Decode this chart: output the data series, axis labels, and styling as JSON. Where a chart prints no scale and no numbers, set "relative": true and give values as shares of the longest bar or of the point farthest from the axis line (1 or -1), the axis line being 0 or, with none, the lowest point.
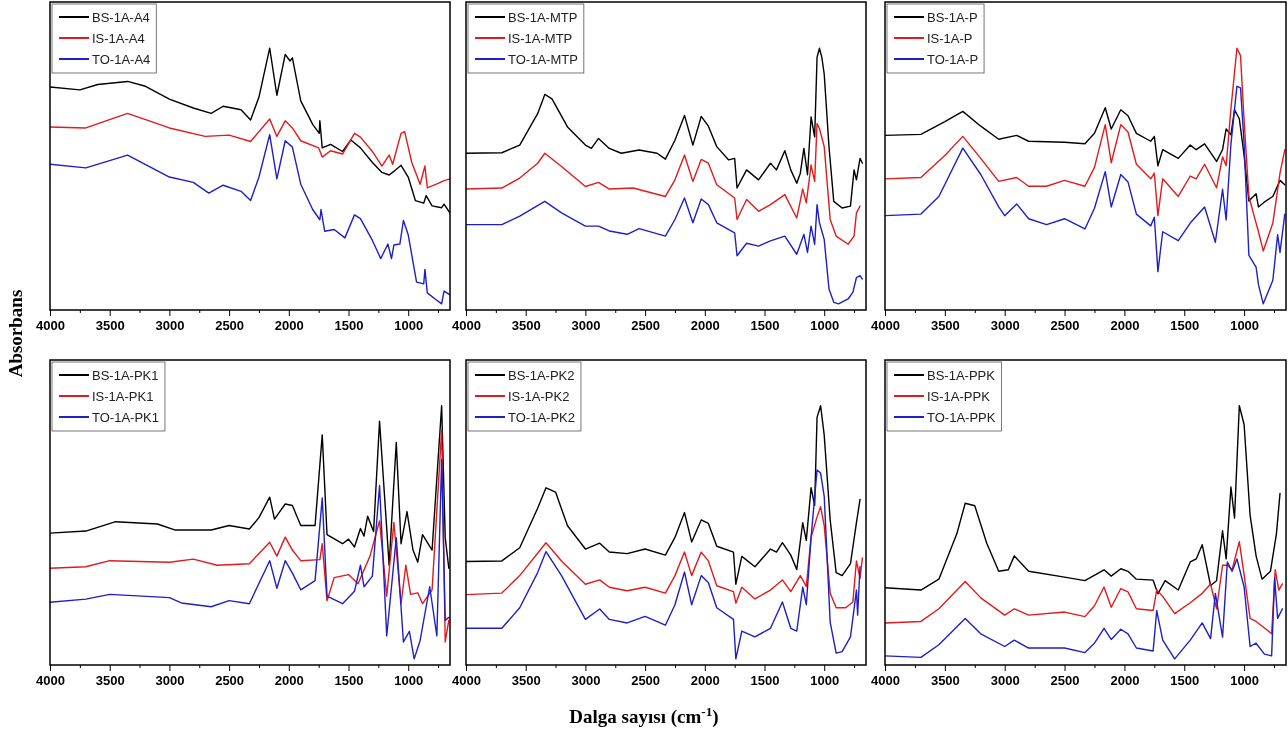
{
  "chart_data": [
    {
      "type": "line",
      "relative": true,
      "ylabel": "Absorbans",
      "xlim": [
        4000,
        650
      ],
      "xticks": [
        4000,
        {
          "value": 3750,
          "label": null
        },
        3500,
        {
          "value": 3250,
          "label": null
        },
        3000,
        {
          "value": 2750,
          "label": null
        },
        2500,
        {
          "value": 2250,
          "label": null
        },
        2000,
        {
          "value": 1750,
          "label": null
        },
        1500,
        {
          "value": 1250,
          "label": null
        },
        1000,
        {
          "value": 750,
          "label": null
        }
      ],
      "legend": "top left",
      "series": [
        {
          "name": "BS-1A-A4",
          "color": "#000000",
          "x": [
            4000,
            3750,
            3600,
            3350,
            3200,
            3000,
            2800,
            2650,
            2550,
            2400,
            2320,
            2250,
            2160,
            2100,
            2030,
            1990,
            1970,
            1900,
            1800,
            1745,
            1740,
            1720,
            1650,
            1550,
            1480,
            1400,
            1300,
            1220,
            1160,
            1120,
            1060,
            1000,
            940,
            870,
            850,
            800,
            720,
            700,
            650
          ],
          "values": [
            0.848,
            0.837,
            0.858,
            0.87,
            0.851,
            0.801,
            0.766,
            0.745,
            0.773,
            0.759,
            0.719,
            0.809,
            1.0,
            0.816,
            0.976,
            0.95,
            0.962,
            0.794,
            0.702,
            0.667,
            0.716,
            0.61,
            0.624,
            0.596,
            0.641,
            0.61,
            0.553,
            0.514,
            0.504,
            0.518,
            0.542,
            0.496,
            0.404,
            0.394,
            0.423,
            0.383,
            0.376,
            0.39,
            0.355
          ]
        },
        {
          "name": "IS-1A-A4",
          "color": "#e31a1c",
          "x": [
            4000,
            3700,
            3350,
            3000,
            2700,
            2500,
            2320,
            2160,
            2100,
            2030,
            1970,
            1900,
            1750,
            1720,
            1650,
            1550,
            1450,
            1400,
            1300,
            1220,
            1160,
            1130,
            1060,
            1030,
            970,
            900,
            860,
            840,
            750,
            700,
            650
          ],
          "values": [
            0.692,
            0.688,
            0.745,
            0.688,
            0.655,
            0.66,
            0.635,
            0.723,
            0.655,
            0.716,
            0.688,
            0.638,
            0.61,
            0.574,
            0.599,
            0.586,
            0.667,
            0.652,
            0.596,
            0.539,
            0.582,
            0.546,
            0.667,
            0.674,
            0.553,
            0.468,
            0.539,
            0.454,
            0.471,
            0.482,
            0.489
          ]
        },
        {
          "name": "TO-1A-A4",
          "color": "#1f1fc8",
          "x": [
            4000,
            3700,
            3350,
            3000,
            2800,
            2670,
            2550,
            2400,
            2320,
            2250,
            2160,
            2100,
            2030,
            1970,
            1900,
            1800,
            1740,
            1730,
            1700,
            1620,
            1530,
            1450,
            1400,
            1300,
            1230,
            1170,
            1140,
            1120,
            1070,
            1040,
            1000,
            930,
            870,
            860,
            840,
            780,
            720,
            700,
            650
          ],
          "values": [
            0.546,
            0.532,
            0.582,
            0.496,
            0.475,
            0.433,
            0.464,
            0.44,
            0.404,
            0.496,
            0.662,
            0.489,
            0.638,
            0.613,
            0.468,
            0.369,
            0.329,
            0.369,
            0.284,
            0.291,
            0.258,
            0.348,
            0.333,
            0.248,
            0.177,
            0.234,
            0.177,
            0.23,
            0.234,
            0.326,
            0.27,
            0.085,
            0.078,
            0.135,
            0.043,
            0.021,
            0,
            0.05,
            0.035
          ]
        }
      ]
    },
    {
      "type": "line",
      "relative": true,
      "xlim": [
        4000,
        650
      ],
      "xticks": [
        4000,
        {
          "value": 3750,
          "label": null
        },
        3500,
        {
          "value": 3250,
          "label": null
        },
        3000,
        {
          "value": 2750,
          "label": null
        },
        2500,
        {
          "value": 2250,
          "label": null
        },
        2000,
        {
          "value": 1750,
          "label": null
        },
        1500,
        {
          "value": 1250,
          "label": null
        },
        1000,
        {
          "value": 750,
          "label": null
        }
      ],
      "legend": "top left",
      "series": [
        {
          "name": "BS-1A-MTP",
          "color": "#000000",
          "x": [
            4000,
            3700,
            3550,
            3400,
            3340,
            3280,
            3150,
            3000,
            2950,
            2890,
            2800,
            2700,
            2550,
            2400,
            2330,
            2250,
            2170,
            2100,
            2030,
            1970,
            1900,
            1800,
            1750,
            1730,
            1650,
            1550,
            1450,
            1400,
            1330,
            1280,
            1230,
            1200,
            1170,
            1140,
            1110,
            1080,
            1060,
            1040,
            1020,
            1000,
            960,
            920,
            850,
            780,
            750,
            730,
            700,
            680
          ],
          "values": [
            0.589,
            0.591,
            0.621,
            0.744,
            0.819,
            0.802,
            0.692,
            0.621,
            0.608,
            0.647,
            0.608,
            0.589,
            0.602,
            0.589,
            0.566,
            0.64,
            0.737,
            0.621,
            0.733,
            0.695,
            0.615,
            0.563,
            0.569,
            0.453,
            0.524,
            0.485,
            0.55,
            0.524,
            0.599,
            0.524,
            0.472,
            0.511,
            0.608,
            0.505,
            0.731,
            0.653,
            0.964,
            1.0,
            0.964,
            0.899,
            0.615,
            0.401,
            0.375,
            0.382,
            0.524,
            0.485,
            0.569,
            0.55
          ]
        },
        {
          "name": "IS-1A-MTP",
          "color": "#e31a1c",
          "x": [
            4000,
            3700,
            3550,
            3400,
            3340,
            3200,
            3000,
            2890,
            2800,
            2600,
            2330,
            2250,
            2170,
            2100,
            2030,
            1970,
            1900,
            1750,
            1730,
            1650,
            1550,
            1450,
            1330,
            1230,
            1180,
            1150,
            1110,
            1080,
            1060,
            1040,
            1000,
            950,
            900,
            800,
            750,
            730,
            700
          ],
          "values": [
            0.449,
            0.453,
            0.492,
            0.55,
            0.589,
            0.537,
            0.459,
            0.475,
            0.449,
            0.453,
            0.42,
            0.485,
            0.582,
            0.479,
            0.565,
            0.55,
            0.466,
            0.414,
            0.33,
            0.408,
            0.362,
            0.388,
            0.427,
            0.336,
            0.449,
            0.395,
            0.543,
            0.479,
            0.705,
            0.686,
            0.615,
            0.33,
            0.265,
            0.233,
            0.265,
            0.356,
            0.382
          ]
        },
        {
          "name": "TO-1A-MTP",
          "color": "#1f1fc8",
          "x": [
            4000,
            3700,
            3550,
            3340,
            3200,
            3000,
            2890,
            2800,
            2650,
            2550,
            2330,
            2250,
            2170,
            2100,
            2030,
            1970,
            1900,
            1750,
            1730,
            1650,
            1550,
            1450,
            1330,
            1230,
            1170,
            1140,
            1110,
            1080,
            1060,
            1040,
            1000,
            960,
            920,
            880,
            800,
            760,
            730,
            700,
            680
          ],
          "values": [
            0.31,
            0.31,
            0.343,
            0.401,
            0.356,
            0.304,
            0.304,
            0.285,
            0.272,
            0.294,
            0.265,
            0.33,
            0.414,
            0.317,
            0.41,
            0.388,
            0.317,
            0.278,
            0.188,
            0.237,
            0.226,
            0.246,
            0.265,
            0.194,
            0.272,
            0.201,
            0.304,
            0.233,
            0.388,
            0.317,
            0.252,
            0.058,
            0.006,
            0,
            0.019,
            0.045,
            0.103,
            0.11,
            0.097
          ]
        }
      ]
    },
    {
      "type": "line",
      "relative": true,
      "xlim": [
        4000,
        650
      ],
      "xticks": [
        4000,
        {
          "value": 3750,
          "label": null
        },
        3500,
        {
          "value": 3250,
          "label": null
        },
        3000,
        {
          "value": 2750,
          "label": null
        },
        2500,
        {
          "value": 2250,
          "label": null
        },
        2000,
        {
          "value": 1750,
          "label": null
        },
        1500,
        {
          "value": 1250,
          "label": null
        },
        1000,
        {
          "value": 750,
          "label": null
        }
      ],
      "legend": "top left",
      "series": [
        {
          "name": "BS-1A-P",
          "color": "#000000",
          "x": [
            4000,
            3700,
            3500,
            3350,
            3200,
            3050,
            2900,
            2800,
            2500,
            2330,
            2250,
            2160,
            2110,
            2030,
            1970,
            1900,
            1780,
            1750,
            1720,
            1680,
            1550,
            1450,
            1400,
            1330,
            1230,
            1180,
            1150,
            1110,
            1080,
            1040,
            1000,
            960,
            900,
            880,
            820,
            760,
            700,
            660
          ],
          "values": [
            0.659,
            0.663,
            0.713,
            0.753,
            0.695,
            0.644,
            0.659,
            0.636,
            0.632,
            0.626,
            0.667,
            0.767,
            0.684,
            0.759,
            0.736,
            0.667,
            0.636,
            0.655,
            0.54,
            0.603,
            0.569,
            0.621,
            0.603,
            0.626,
            0.557,
            0.603,
            0.684,
            0.661,
            0.759,
            0.724,
            0.58,
            0.402,
            0.431,
            0.379,
            0.402,
            0.42,
            0.483,
            0.466
          ]
        },
        {
          "name": "IS-1A-P",
          "color": "#e31a1c",
          "x": [
            4000,
            3700,
            3500,
            3350,
            3200,
            3050,
            2900,
            2800,
            2650,
            2500,
            2330,
            2250,
            2160,
            2110,
            2030,
            1970,
            1900,
            1780,
            1750,
            1720,
            1680,
            1550,
            1450,
            1400,
            1330,
            1230,
            1180,
            1150,
            1110,
            1060,
            1030,
            1000,
            960,
            900,
            880,
            840,
            760,
            700,
            660
          ],
          "values": [
            0.489,
            0.494,
            0.58,
            0.655,
            0.569,
            0.479,
            0.494,
            0.46,
            0.46,
            0.483,
            0.46,
            0.534,
            0.701,
            0.552,
            0.701,
            0.672,
            0.546,
            0.489,
            0.511,
            0.345,
            0.489,
            0.42,
            0.5,
            0.489,
            0.546,
            0.454,
            0.575,
            0.54,
            0.764,
            1.0,
            0.971,
            0.718,
            0.42,
            0.316,
            0.282,
            0.207,
            0.316,
            0.511,
            0.603
          ]
        },
        {
          "name": "TO-1A-P",
          "color": "#1f1fc8",
          "x": [
            4000,
            3700,
            3550,
            3350,
            3200,
            3050,
            3000,
            2900,
            2800,
            2650,
            2500,
            2330,
            2250,
            2160,
            2110,
            2030,
            1970,
            1900,
            1780,
            1750,
            1720,
            1680,
            1550,
            1450,
            1330,
            1240,
            1180,
            1150,
            1110,
            1060,
            1030,
            1000,
            960,
            900,
            880,
            840,
            760,
            720,
            700,
            660
          ],
          "values": [
            0.345,
            0.351,
            0.42,
            0.609,
            0.506,
            0.379,
            0.345,
            0.391,
            0.333,
            0.31,
            0.333,
            0.293,
            0.374,
            0.517,
            0.379,
            0.506,
            0.477,
            0.351,
            0.305,
            0.339,
            0.126,
            0.282,
            0.247,
            0.316,
            0.379,
            0.241,
            0.448,
            0.328,
            0.626,
            0.851,
            0.845,
            0.626,
            0.19,
            0.144,
            0.075,
            0,
            0.092,
            0.27,
            0.201,
            0.351
          ]
        }
      ]
    },
    {
      "type": "line",
      "relative": true,
      "xlim": [
        4000,
        650
      ],
      "xticks": [
        4000,
        {
          "value": 3750,
          "label": null
        },
        3500,
        {
          "value": 3250,
          "label": null
        },
        3000,
        {
          "value": 2750,
          "label": null
        },
        2500,
        {
          "value": 2250,
          "label": null
        },
        2000,
        {
          "value": 1750,
          "label": null
        },
        1500,
        {
          "value": 1250,
          "label": null
        },
        1000,
        {
          "value": 750,
          "label": null
        }
      ],
      "legend": "top left",
      "series": [
        {
          "name": "BS-1A-PK1",
          "color": "#000000",
          "x": [
            4000,
            3700,
            3450,
            3100,
            2950,
            2650,
            2500,
            2330,
            2250,
            2160,
            2120,
            2030,
            1970,
            1900,
            1780,
            1720,
            1680,
            1550,
            1500,
            1450,
            1400,
            1370,
            1340,
            1290,
            1240,
            1180,
            1160,
            1100,
            1060,
            1010,
            960,
            920,
            880,
            800,
            720,
            690,
            660
          ],
          "values": [
            0.497,
            0.505,
            0.542,
            0.533,
            0.509,
            0.509,
            0.527,
            0.513,
            0.558,
            0.639,
            0.552,
            0.612,
            0.606,
            0.527,
            0.527,
            0.885,
            0.491,
            0.455,
            0.473,
            0.442,
            0.515,
            0.485,
            0.564,
            0.503,
            0.939,
            0.515,
            0.37,
            0.855,
            0.455,
            0.582,
            0.43,
            0.382,
            0.491,
            0.43,
            1.0,
            0.479,
            0.358
          ]
        },
        {
          "name": "IS-1A-PK1",
          "color": "#e31a1c",
          "x": [
            4000,
            3700,
            3500,
            3000,
            2800,
            2600,
            2330,
            2160,
            2100,
            2030,
            1970,
            1900,
            1740,
            1720,
            1680,
            1620,
            1500,
            1420,
            1320,
            1240,
            1180,
            1120,
            1060,
            1020,
            980,
            920,
            880,
            800,
            720,
            690,
            660
          ],
          "values": [
            0.358,
            0.364,
            0.388,
            0.382,
            0.394,
            0.37,
            0.376,
            0.461,
            0.406,
            0.481,
            0.43,
            0.388,
            0.392,
            0.455,
            0.23,
            0.321,
            0.333,
            0.297,
            0.406,
            0.545,
            0.248,
            0.539,
            0.218,
            0.37,
            0.255,
            0.261,
            0.218,
            0.273,
            0.903,
            0.067,
            0.152
          ]
        },
        {
          "name": "TO-1A-PK1",
          "color": "#1f1fc8",
          "x": [
            4000,
            3700,
            3500,
            3000,
            2900,
            2650,
            2500,
            2330,
            2160,
            2100,
            2030,
            1970,
            1900,
            1780,
            1720,
            1680,
            1550,
            1450,
            1400,
            1370,
            1300,
            1240,
            1180,
            1100,
            1040,
            990,
            950,
            900,
            820,
            760,
            720,
            690,
            660
          ],
          "values": [
            0.224,
            0.236,
            0.255,
            0.242,
            0.221,
            0.206,
            0.23,
            0.218,
            0.388,
            0.279,
            0.388,
            0.339,
            0.273,
            0.309,
            0.636,
            0.248,
            0.218,
            0.267,
            0.37,
            0.285,
            0.327,
            0.685,
            0.091,
            0.479,
            0.067,
            0.109,
            0,
            0.073,
            0.285,
            0.091,
            0.788,
            0.152,
            0.164
          ]
        }
      ]
    },
    {
      "type": "line",
      "relative": true,
      "xlabel": "Dalga sayısı (cm$^{-1}$)",
      "xlim": [
        4000,
        650
      ],
      "xticks": [
        4000,
        {
          "value": 3750,
          "label": null
        },
        3500,
        {
          "value": 3250,
          "label": null
        },
        3000,
        {
          "value": 2750,
          "label": null
        },
        2500,
        {
          "value": 2250,
          "label": null
        },
        2000,
        {
          "value": 1750,
          "label": null
        },
        1500,
        {
          "value": 1250,
          "label": null
        },
        1000,
        {
          "value": 750,
          "label": null
        }
      ],
      "legend": "top left",
      "series": [
        {
          "name": "BS-1A-PK2",
          "color": "#000000",
          "x": [
            4000,
            3700,
            3550,
            3400,
            3330,
            3250,
            3150,
            3000,
            2880,
            2800,
            2650,
            2500,
            2330,
            2250,
            2170,
            2110,
            2030,
            1970,
            1900,
            1760,
            1740,
            1690,
            1580,
            1450,
            1400,
            1350,
            1280,
            1230,
            1180,
            1150,
            1110,
            1080,
            1060,
            1030,
            1000,
            950,
            900,
            850,
            780,
            730,
            700
          ],
          "values": [
            0.385,
            0.387,
            0.439,
            0.595,
            0.676,
            0.659,
            0.526,
            0.434,
            0.457,
            0.422,
            0.416,
            0.434,
            0.41,
            0.48,
            0.578,
            0.462,
            0.549,
            0.535,
            0.445,
            0.422,
            0.295,
            0.405,
            0.364,
            0.434,
            0.422,
            0.459,
            0.41,
            0.353,
            0.538,
            0.468,
            0.676,
            0.607,
            0.954,
            1.0,
            0.884,
            0.549,
            0.341,
            0.329,
            0.376,
            0.538,
            0.63
          ]
        },
        {
          "name": "IS-1A-PK2",
          "color": "#e31a1c",
          "x": [
            4000,
            3700,
            3550,
            3330,
            3200,
            3000,
            2880,
            2800,
            2650,
            2500,
            2330,
            2250,
            2170,
            2110,
            2030,
            1970,
            1900,
            1760,
            1740,
            1690,
            1580,
            1450,
            1350,
            1280,
            1200,
            1150,
            1110,
            1060,
            1030,
            1000,
            950,
            900,
            820,
            760,
            730,
            700,
            680
          ],
          "values": [
            0.254,
            0.26,
            0.329,
            0.459,
            0.387,
            0.295,
            0.312,
            0.283,
            0.269,
            0.283,
            0.26,
            0.329,
            0.422,
            0.329,
            0.422,
            0.387,
            0.289,
            0.266,
            0.22,
            0.283,
            0.237,
            0.272,
            0.312,
            0.266,
            0.329,
            0.286,
            0.48,
            0.561,
            0.601,
            0.526,
            0.26,
            0.202,
            0.202,
            0.225,
            0.387,
            0.318,
            0.399
          ]
        },
        {
          "name": "TO-1A-PK2",
          "color": "#1f1fc8",
          "x": [
            4000,
            3700,
            3550,
            3400,
            3330,
            3200,
            3000,
            2880,
            2800,
            2650,
            2500,
            2330,
            2250,
            2170,
            2110,
            2030,
            1970,
            1900,
            1760,
            1740,
            1690,
            1580,
            1450,
            1350,
            1280,
            1230,
            1180,
            1150,
            1110,
            1060,
            1030,
            1000,
            950,
            900,
            850,
            780,
            730,
            720,
            700
          ],
          "values": [
            0.121,
            0.121,
            0.202,
            0.341,
            0.424,
            0.329,
            0.156,
            0.197,
            0.156,
            0.142,
            0.168,
            0.133,
            0.214,
            0.343,
            0.214,
            0.329,
            0.301,
            0.202,
            0.156,
            0,
            0.11,
            0.087,
            0.121,
            0.225,
            0.121,
            0.11,
            0.283,
            0.214,
            0.48,
            0.746,
            0.734,
            0.642,
            0.145,
            0.023,
            0.029,
            0.087,
            0.272,
            0.173,
            0.364
          ]
        }
      ]
    },
    {
      "type": "line",
      "relative": true,
      "xlim": [
        4000,
        650
      ],
      "xticks": [
        4000,
        {
          "value": 3750,
          "label": null
        },
        3500,
        {
          "value": 3250,
          "label": null
        },
        3000,
        {
          "value": 2750,
          "label": null
        },
        2500,
        {
          "value": 2250,
          "label": null
        },
        2000,
        {
          "value": 1750,
          "label": null
        },
        1500,
        {
          "value": 1250,
          "label": null
        },
        1000,
        {
          "value": 750,
          "label": null
        }
      ],
      "legend": "top left",
      "series": [
        {
          "name": "BS-1A-PPK",
          "color": "#000000",
          "x": [
            4000,
            3700,
            3550,
            3400,
            3330,
            3250,
            3150,
            3050,
            2970,
            2920,
            2800,
            2500,
            2330,
            2170,
            2110,
            2030,
            1970,
            1900,
            1760,
            1720,
            1660,
            1550,
            1450,
            1400,
            1350,
            1280,
            1230,
            1180,
            1150,
            1110,
            1080,
            1040,
            1000,
            950,
            900,
            850,
            780,
            730,
            700
          ],
          "values": [
            0.281,
            0.272,
            0.315,
            0.494,
            0.615,
            0.605,
            0.457,
            0.346,
            0.352,
            0.407,
            0.346,
            0.323,
            0.309,
            0.352,
            0.327,
            0.356,
            0.346,
            0.315,
            0.311,
            0.257,
            0.309,
            0.272,
            0.383,
            0.395,
            0.451,
            0.29,
            0.309,
            0.506,
            0.395,
            0.679,
            0.556,
            1.0,
            0.926,
            0.568,
            0.407,
            0.315,
            0.346,
            0.494,
            0.654
          ]
        },
        {
          "name": "IS-1A-PPK",
          "color": "#e31a1c",
          "x": [
            4000,
            3700,
            3550,
            3330,
            3200,
            3000,
            2920,
            2800,
            2500,
            2330,
            2250,
            2170,
            2110,
            2030,
            1970,
            1900,
            1760,
            1730,
            1680,
            1580,
            1450,
            1350,
            1280,
            1230,
            1180,
            1140,
            1100,
            1040,
            1000,
            950,
            900,
            800,
            770,
            740,
            710,
            680
          ],
          "values": [
            0.142,
            0.148,
            0.198,
            0.306,
            0.241,
            0.173,
            0.198,
            0.173,
            0.185,
            0.167,
            0.21,
            0.284,
            0.204,
            0.278,
            0.265,
            0.198,
            0.191,
            0.272,
            0.247,
            0.179,
            0.222,
            0.259,
            0.296,
            0.198,
            0.37,
            0.37,
            0.352,
            0.463,
            0.333,
            0.16,
            0.148,
            0.111,
            0.099,
            0.352,
            0.272,
            0.296
          ]
        },
        {
          "name": "TO-1A-PPK",
          "color": "#1f1fc8",
          "x": [
            4000,
            3700,
            3550,
            3330,
            3200,
            3000,
            2920,
            2800,
            2500,
            2330,
            2250,
            2170,
            2110,
            2030,
            1970,
            1900,
            1760,
            1730,
            1680,
            1580,
            1450,
            1350,
            1280,
            1240,
            1180,
            1140,
            1100,
            1060,
            1040,
            1000,
            950,
            900,
            830,
            770,
            745,
            720,
            680
          ],
          "values": [
            0.012,
            0.006,
            0.056,
            0.16,
            0.099,
            0.049,
            0.074,
            0.043,
            0.043,
            0.025,
            0.062,
            0.121,
            0.077,
            0.117,
            0.099,
            0.043,
            0.031,
            0.191,
            0.074,
            0,
            0.074,
            0.142,
            0.08,
            0.259,
            0.086,
            0.383,
            0.346,
            0.395,
            0.358,
            0.284,
            0.049,
            0.062,
            0.019,
            0.012,
            0.321,
            0.16,
            0.198
          ]
        }
      ]
    }
  ]
}
